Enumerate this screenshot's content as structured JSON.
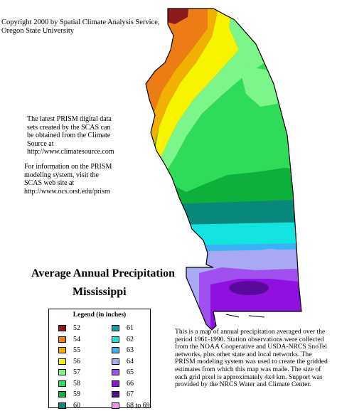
{
  "map": {
    "copyright_lines": [
      "Copyright 2000 by Spatial Climate Analysis Service,",
      "Oregon State University"
    ],
    "prism_info_lines": [
      "The latest PRISM digital data",
      "sets created by the SCAS can",
      "be obtained from the Climate",
      "Source at",
      "http://www.climatesource.com"
    ],
    "modeling_info_lines": [
      "For information on the PRISM",
      "modeling system, visit the",
      "SCAS web site at",
      "http://www.ocs.orst.edu/prism"
    ],
    "title": "Average Annual Precipitation",
    "subtitle": "Mississippi",
    "description": "This is a map of annual precipitation averaged over the period 1961-1990. Station observations were collected from the NOAA Cooperative and USDA-NRCS SnoTel networks, plus other state and local networks. The PRISM modeling system was used to create the gridded estimates from which this map was made. The size of each grid pixel is approximately 4x4 km. Support was provided by the NRCS Water and Climate Center."
  },
  "legend": {
    "title": "Legend (in inches)",
    "items": [
      {
        "label": "52",
        "color": "#8b1a1a"
      },
      {
        "label": "54",
        "color": "#ee7c14"
      },
      {
        "label": "55",
        "color": "#f2b100"
      },
      {
        "label": "56",
        "color": "#f8f400"
      },
      {
        "label": "57",
        "color": "#7cf58a"
      },
      {
        "label": "58",
        "color": "#2edc5a"
      },
      {
        "label": "59",
        "color": "#0cb03a"
      },
      {
        "label": "60",
        "color": "#08887a"
      },
      {
        "label": "61",
        "color": "#0aa0a0"
      },
      {
        "label": "62",
        "color": "#12e4e0"
      },
      {
        "label": "63",
        "color": "#38b4f4"
      },
      {
        "label": "64",
        "color": "#a8a8f4"
      },
      {
        "label": "65",
        "color": "#a050f0"
      },
      {
        "label": "66",
        "color": "#9010e0"
      },
      {
        "label": "67",
        "color": "#5a0a9a"
      },
      {
        "label": "68 to 69",
        "color": "#f590f0"
      }
    ]
  }
}
